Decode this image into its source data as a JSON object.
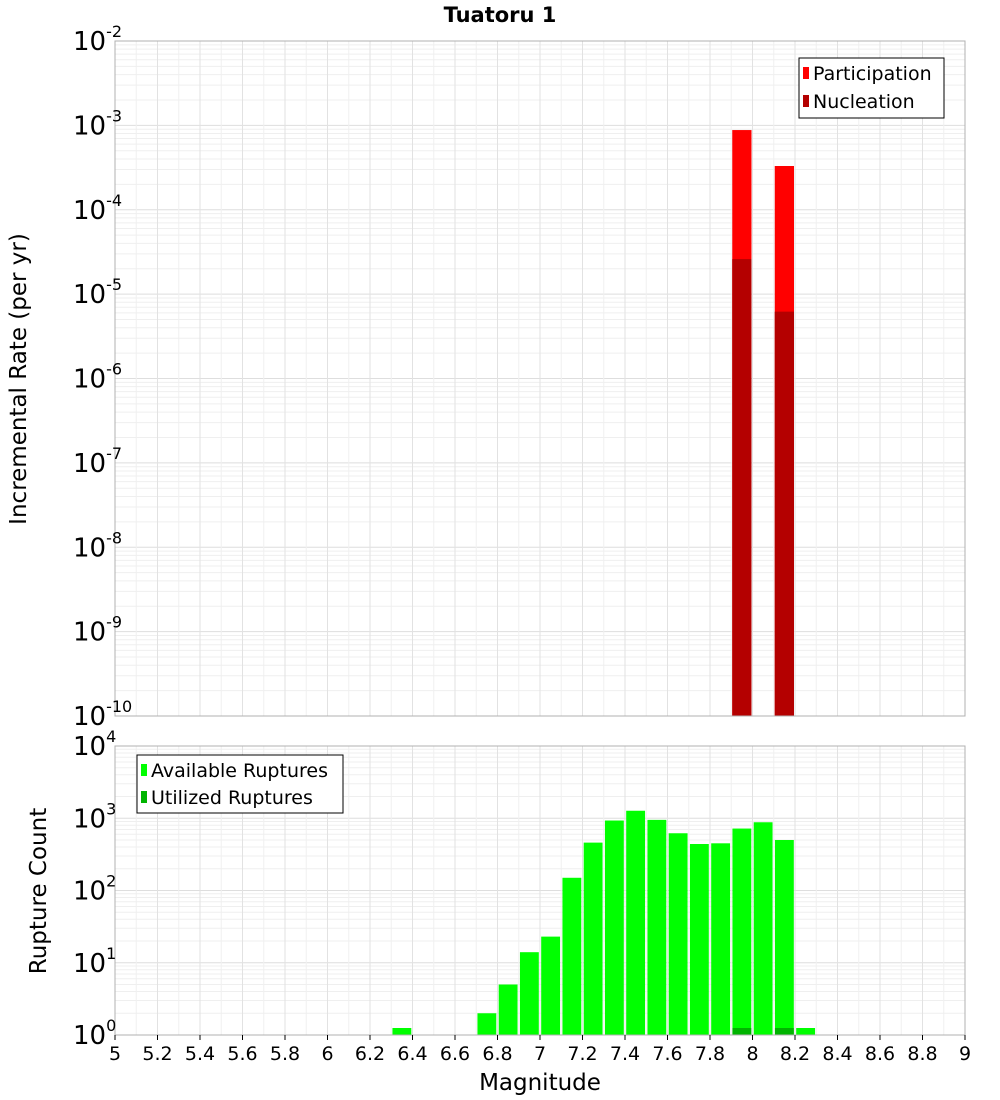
{
  "chart_data": {
    "title": "Tuatoru 1",
    "xlabel": "Magnitude",
    "x_ticks": [
      "5",
      "5.2",
      "5.4",
      "5.6",
      "5.8",
      "6",
      "6.2",
      "6.4",
      "6.6",
      "6.8",
      "7",
      "7.2",
      "7.4",
      "7.6",
      "7.8",
      "8",
      "8.2",
      "8.4",
      "8.6",
      "8.8",
      "9"
    ],
    "xlim": [
      5,
      9
    ],
    "bin_width": 0.1,
    "panels": [
      {
        "name": "rate",
        "type": "bar",
        "ylabel": "Incremental Rate (per yr)",
        "yscale": "log",
        "ylim_exponents": [
          -10,
          -2
        ],
        "legend_position": "top-right",
        "series": [
          {
            "name": "Participation",
            "color": "#ff0000",
            "points": [
              {
                "x": 7.95,
                "y": 0.00088
              },
              {
                "x": 8.15,
                "y": 0.00033
              }
            ]
          },
          {
            "name": "Nucleation",
            "color": "#b40000",
            "points": [
              {
                "x": 7.95,
                "y": 2.6e-05
              },
              {
                "x": 8.15,
                "y": 6.2e-06
              }
            ]
          }
        ]
      },
      {
        "name": "count",
        "type": "bar",
        "ylabel": "Rupture Count",
        "yscale": "log",
        "ylim_exponents": [
          0,
          4
        ],
        "legend_position": "top-left",
        "series": [
          {
            "name": "Available Ruptures",
            "color": "#00ff00",
            "points": [
              {
                "x": 6.35,
                "y": 1
              },
              {
                "x": 6.75,
                "y": 2
              },
              {
                "x": 6.85,
                "y": 5
              },
              {
                "x": 6.95,
                "y": 14
              },
              {
                "x": 7.05,
                "y": 23
              },
              {
                "x": 7.15,
                "y": 150
              },
              {
                "x": 7.25,
                "y": 460
              },
              {
                "x": 7.35,
                "y": 930
              },
              {
                "x": 7.45,
                "y": 1270
              },
              {
                "x": 7.55,
                "y": 950
              },
              {
                "x": 7.65,
                "y": 620
              },
              {
                "x": 7.75,
                "y": 440
              },
              {
                "x": 7.85,
                "y": 450
              },
              {
                "x": 7.95,
                "y": 720
              },
              {
                "x": 8.05,
                "y": 880
              },
              {
                "x": 8.15,
                "y": 500
              },
              {
                "x": 8.25,
                "y": 1
              }
            ]
          },
          {
            "name": "Utilized Ruptures",
            "color": "#00b400",
            "points": [
              {
                "x": 7.95,
                "y": 1
              },
              {
                "x": 8.15,
                "y": 1
              }
            ]
          }
        ]
      }
    ]
  }
}
